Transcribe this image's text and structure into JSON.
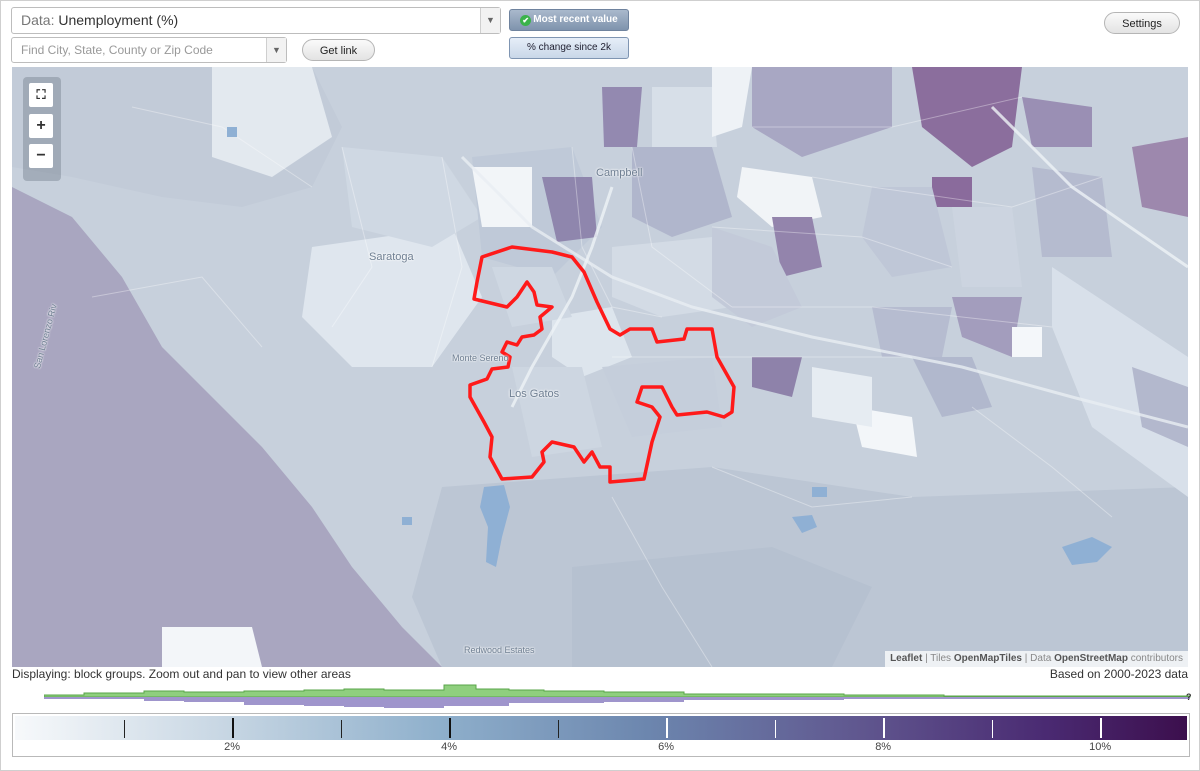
{
  "data_select": {
    "prefix": "Data:",
    "value": "Unemployment (%)"
  },
  "search": {
    "placeholder": "Find City, State, County or Zip Code"
  },
  "buttons": {
    "get_link": "Get link",
    "settings": "Settings"
  },
  "toggles": {
    "most_recent": "Most recent value",
    "pct_change": "% change since 2k"
  },
  "map": {
    "places": {
      "campbell": "Campbell",
      "saratoga": "Saratoga",
      "monte_sereno": "Monte Sereno",
      "los_gatos": "Los Gatos",
      "redwood_estates": "Redwood Estates",
      "san_lorenzo_river": "San Lorenzo Riv"
    },
    "zoom": {
      "zoom_in": "+",
      "zoom_out": "−",
      "fullscreen": "⛶"
    },
    "attribution": {
      "leaflet": "Leaflet",
      "tiles_prefix": "Tiles",
      "tiles": "OpenMapTiles",
      "data_prefix": "Data",
      "data": "OpenStreetMap",
      "suffix": "contributors"
    },
    "boundary_color": "#ff1a1a"
  },
  "footer": {
    "displaying": "Displaying: block groups. Zoom out and pan to view other areas",
    "based_on": "Based on 2000-2023 data",
    "question_mark": "?"
  },
  "legend": {
    "ticks": [
      {
        "label": "2%",
        "value": 2,
        "major": true
      },
      {
        "label": "4%",
        "value": 4,
        "major": true
      },
      {
        "label": "6%",
        "value": 6,
        "major": true
      },
      {
        "label": "8%",
        "value": 8,
        "major": true
      },
      {
        "label": "10%",
        "value": 10,
        "major": true
      }
    ],
    "minor_ticks": [
      1,
      3,
      5,
      7,
      9
    ],
    "range": [
      0,
      10.8
    ],
    "colors": [
      "#f7f9fb",
      "#8fb0cc",
      "#6c86ae",
      "#60578f",
      "#3c0f4d"
    ]
  }
}
